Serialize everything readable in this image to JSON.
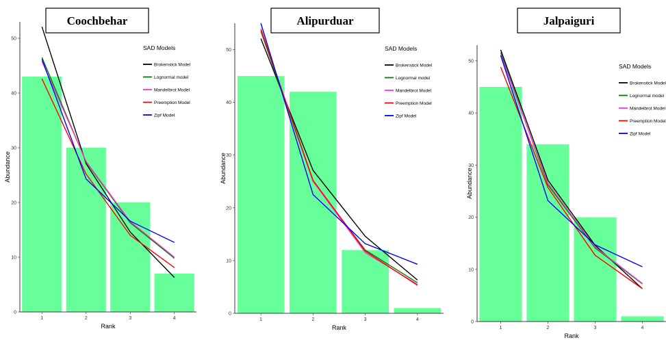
{
  "chart_data": [
    {
      "type": "bar",
      "title": "Coochbehar",
      "xlabel": "Rank",
      "ylabel": "Abundance",
      "categories": [
        "1",
        "2",
        "3",
        "4"
      ],
      "values": [
        43,
        30,
        20,
        7
      ],
      "ylim": [
        0,
        53
      ],
      "yticks": [
        0,
        10,
        20,
        30,
        40,
        50
      ],
      "bar_color": "#66ff99",
      "grid": false,
      "legend": {
        "title": "SAD Models",
        "placement": "top-right",
        "entries": [
          "Brokenstick Model",
          "Lognormal model",
          "Mandelbrot Model",
          "Preemption Model",
          "Zipf Model"
        ]
      },
      "lines": [
        {
          "name": "Brokenstick Model",
          "color": "#000000",
          "values": [
            52.1,
            27.1,
            14.6,
            6.3
          ]
        },
        {
          "name": "Lognormal model",
          "color": "#008000",
          "values": [
            46.5,
            27.4,
            16.3,
            9.8
          ]
        },
        {
          "name": "Mandelbrot Model",
          "color": "#ff33cc",
          "values": [
            45.8,
            27.5,
            16.5,
            10.0
          ]
        },
        {
          "name": "Preemption Model",
          "color": "#ff0000",
          "values": [
            42.6,
            25.2,
            14.0,
            8.1
          ]
        },
        {
          "name": "Zipf Model",
          "color": "#0000ff",
          "values": [
            46.2,
            24.3,
            16.6,
            12.7
          ]
        }
      ]
    },
    {
      "type": "bar",
      "title": "Alipurduar",
      "xlabel": "Rank",
      "ylabel": "Abundance",
      "categories": [
        "1",
        "2",
        "3",
        "4"
      ],
      "values": [
        45,
        42,
        12,
        1
      ],
      "ylim": [
        0,
        55
      ],
      "yticks": [
        0,
        10,
        20,
        30,
        40,
        50
      ],
      "bar_color": "#66ff99",
      "grid": false,
      "legend": {
        "title": "SAD Models",
        "placement": "top-right",
        "entries": [
          "Brokenstick Model",
          "Lognormal model",
          "Mandelbrot Model",
          "Preemption Model",
          "Zipf Model"
        ]
      },
      "lines": [
        {
          "name": "Brokenstick Model",
          "color": "#000000",
          "values": [
            52.1,
            27.1,
            14.6,
            6.3
          ]
        },
        {
          "name": "Lognormal model",
          "color": "#008000",
          "values": [
            53.5,
            25.0,
            12.0,
            5.8
          ]
        },
        {
          "name": "Mandelbrot Model",
          "color": "#ff33cc",
          "values": [
            54.0,
            25.0,
            11.5,
            5.5
          ]
        },
        {
          "name": "Preemption Model",
          "color": "#ff0000",
          "values": [
            53.8,
            25.2,
            11.8,
            5.3
          ]
        },
        {
          "name": "Zipf Model",
          "color": "#0000ff",
          "values": [
            55.0,
            22.5,
            13.2,
            9.3
          ]
        }
      ]
    },
    {
      "type": "bar",
      "title": "Jalpaiguri",
      "xlabel": "Rank",
      "ylabel": "Abundance",
      "categories": [
        "1",
        "2",
        "3",
        "4"
      ],
      "values": [
        45,
        34,
        20,
        1
      ],
      "ylim": [
        0,
        53
      ],
      "yticks": [
        0,
        10,
        20,
        30,
        40,
        50
      ],
      "bar_color": "#66ff99",
      "grid": false,
      "legend": {
        "title": "SAD Models",
        "placement": "top-right",
        "entries": [
          "Brokenstick Model",
          "Lognormal model",
          "Mandelbrot Model",
          "Preemption Model",
          "Zipf Model"
        ]
      },
      "lines": [
        {
          "name": "Brokenstick Model",
          "color": "#000000",
          "values": [
            52.1,
            27.1,
            14.6,
            6.3
          ]
        },
        {
          "name": "Lognormal model",
          "color": "#008000",
          "values": [
            51.6,
            26.2,
            14.1,
            7.2
          ]
        },
        {
          "name": "Mandelbrot Model",
          "color": "#ff33cc",
          "values": [
            51.2,
            26.5,
            14.3,
            7.3
          ]
        },
        {
          "name": "Preemption Model",
          "color": "#ff0000",
          "values": [
            48.8,
            25.7,
            12.7,
            6.3
          ]
        },
        {
          "name": "Zipf Model",
          "color": "#0000ff",
          "values": [
            51.0,
            23.2,
            14.7,
            10.5
          ]
        }
      ]
    }
  ]
}
